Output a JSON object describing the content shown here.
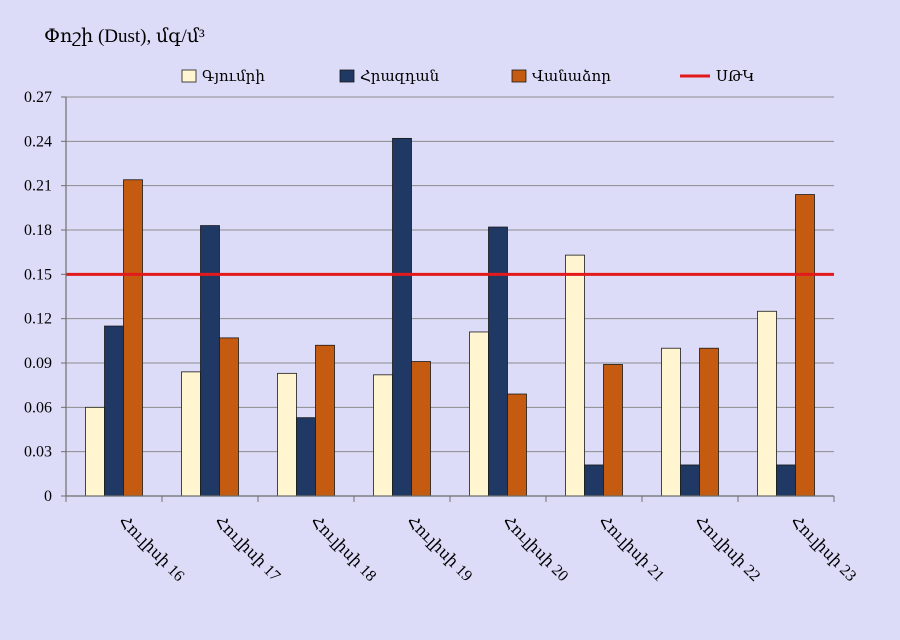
{
  "chart_data": {
    "type": "bar",
    "title": "Փոշի (Dust), մգ/մ³",
    "xlabel": "",
    "ylabel": "",
    "categories": [
      "Հուլիսի 16",
      "Հուլիսի 17",
      "Հուլիսի 18",
      "Հուլիսի 19",
      "Հուլիսի 20",
      "Հուլիսի 21",
      "Հուլիսի 22",
      "Հուլիսի 23"
    ],
    "series": [
      {
        "name": "Գյումրի",
        "color": "#fff5d1",
        "values": [
          0.06,
          0.084,
          0.083,
          0.082,
          0.111,
          0.163,
          0.1,
          0.125
        ]
      },
      {
        "name": "Հրազդան",
        "color": "#1f3864",
        "values": [
          0.115,
          0.183,
          0.053,
          0.242,
          0.182,
          0.021,
          0.021,
          0.021
        ]
      },
      {
        "name": "Վանաձոր",
        "color": "#c55a11",
        "values": [
          0.214,
          0.107,
          0.102,
          0.091,
          0.069,
          0.089,
          0.1,
          0.204
        ]
      }
    ],
    "reference_line": {
      "name": "ՍԹԿ",
      "value": 0.15,
      "color": "#e31a1c"
    },
    "ylim": [
      0,
      0.27
    ],
    "yticks": [
      "0",
      "0.03",
      "0.06",
      "0.09",
      "0.12",
      "0.15",
      "0.18",
      "0.21",
      "0.24",
      "0.27"
    ],
    "grid": true,
    "legend_position": "top",
    "colors": {
      "background": "#dcdcf8",
      "gridline": "#8c8c8c",
      "axis": "#6e6e6e",
      "bar_outline": "#1a1a1a"
    }
  }
}
